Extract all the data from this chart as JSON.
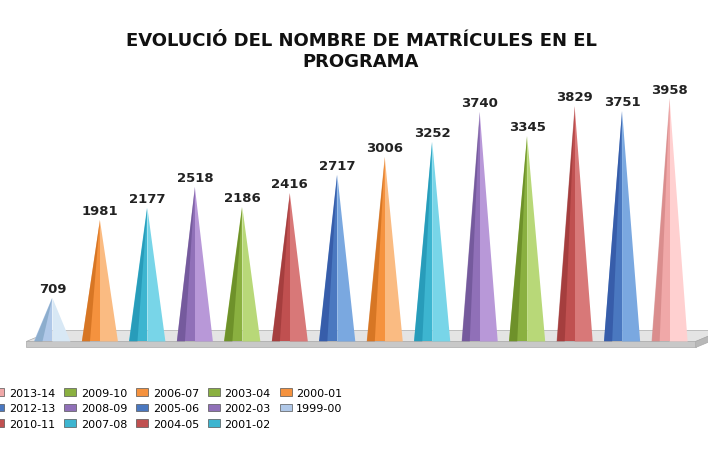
{
  "title": "EVOLUCIÓ DEL NOMBRE DE MATRÍCULES EN EL\nPROGRAMA",
  "years_ordered": [
    "1999-00",
    "2000-01",
    "2001-02",
    "2002-03",
    "2003-04",
    "2004-05",
    "2005-06",
    "2006-07",
    "2007-08",
    "2008-09",
    "2009-10",
    "2010-11",
    "2012-13",
    "2013-14"
  ],
  "values": [
    709,
    1981,
    2177,
    2518,
    2186,
    2416,
    2717,
    3006,
    3252,
    3740,
    3345,
    3829,
    3751,
    3958
  ],
  "cone_colors_main": [
    "#b0c8e8",
    "#f5923e",
    "#3db5d0",
    "#9070b8",
    "#8ab040",
    "#c05050",
    "#4a78c0",
    "#f5923e",
    "#3db5d0",
    "#9070b8",
    "#8ab040",
    "#c05050",
    "#4a78c0",
    "#f0a8a8"
  ],
  "cone_colors_light": [
    "#d8e8f5",
    "#fabb82",
    "#78d5e8",
    "#b898d8",
    "#b8d878",
    "#d87878",
    "#7aa8e0",
    "#fabb82",
    "#78d5e8",
    "#b898d8",
    "#b8d878",
    "#d87878",
    "#7aa8e0",
    "#ffd0d0"
  ],
  "cone_colors_dark": [
    "#7098b8",
    "#c06010",
    "#1888a8",
    "#604888",
    "#587818",
    "#903030",
    "#284898",
    "#c06010",
    "#1888a8",
    "#604888",
    "#587818",
    "#903030",
    "#284898",
    "#c87878"
  ],
  "legend_labels_row1": [
    "2013-14",
    "2012-13",
    "2010-11",
    "2009-10",
    "2008-09"
  ],
  "legend_colors_row1": [
    "#f0a8a8",
    "#4a78c0",
    "#c05050",
    "#8ab040",
    "#9070b8"
  ],
  "legend_labels_row2": [
    "2007-08",
    "2006-07",
    "2005-06",
    "2004-05",
    "2003-04"
  ],
  "legend_colors_row2": [
    "#3db5d0",
    "#f5923e",
    "#4a78c0",
    "#c05050",
    "#8ab040"
  ],
  "legend_labels_row3": [
    "2002-03",
    "2001-02",
    "2000-01",
    "1999-00"
  ],
  "legend_colors_row3": [
    "#9070b8",
    "#3db5d0",
    "#f5923e",
    "#b0c8e8"
  ],
  "background_color": "#ffffff",
  "title_fontsize": 13,
  "value_fontsize": 9.5
}
